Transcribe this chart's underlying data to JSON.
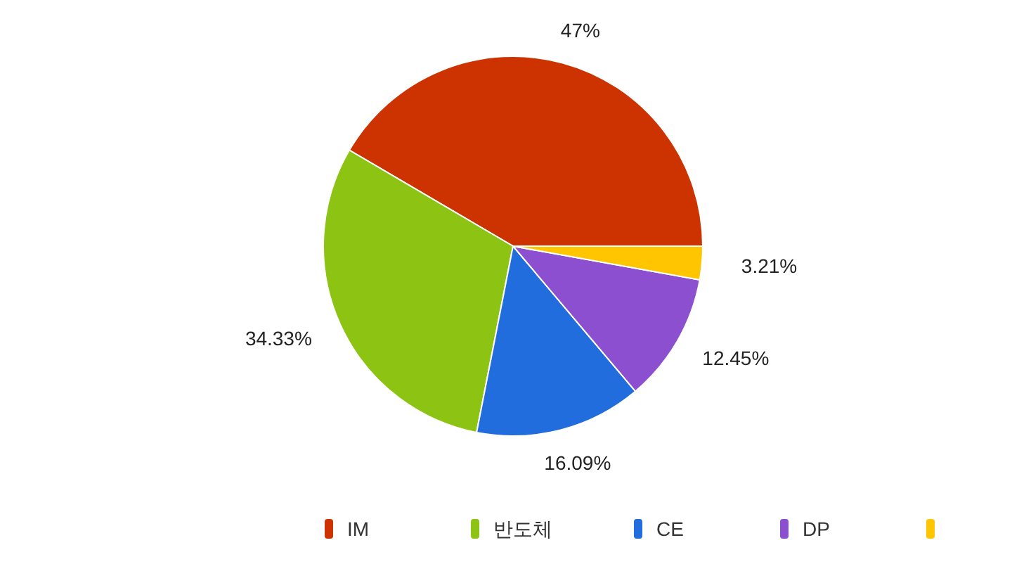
{
  "chart_data": {
    "type": "pie",
    "categories": [
      "IM",
      "반도체",
      "CE",
      "DP",
      null
    ],
    "values": [
      47,
      34.33,
      16.09,
      12.45,
      3.21
    ],
    "colors": [
      "#cc3300",
      "#8dc313",
      "#226ddd",
      "#8b4fcf",
      "#ffc600"
    ],
    "value_labels": [
      "47%",
      "34.33%",
      "16.09%",
      "12.45%",
      "3.21%"
    ],
    "legend": "bottom"
  }
}
